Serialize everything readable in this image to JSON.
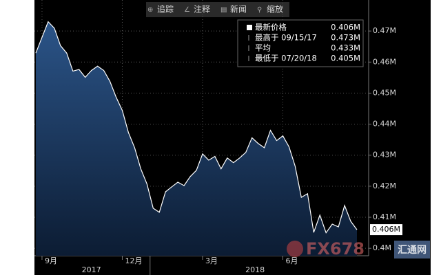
{
  "chart_data": {
    "type": "area",
    "toolbar": [
      "追踪",
      "注释",
      "新闻",
      "缩放"
    ],
    "legend": [
      {
        "label": "最新价格",
        "value": "0.406M"
      },
      {
        "label": "最高于 09/15/17",
        "value": "0.473M"
      },
      {
        "label": "平均",
        "value": "0.433M"
      },
      {
        "label": "最低于 07/20/18",
        "value": "0.405M"
      }
    ],
    "categories": [
      null,
      "9月",
      null,
      null,
      null,
      null,
      null,
      null,
      null,
      null,
      null,
      null,
      null,
      null,
      "12月",
      null,
      null,
      null,
      null,
      null,
      null,
      null,
      null,
      null,
      null,
      null,
      null,
      "3月",
      null,
      null,
      null,
      null,
      null,
      null,
      null,
      null,
      null,
      null,
      null,
      null,
      "6月",
      null,
      null,
      null,
      null,
      null,
      null,
      null,
      null,
      null,
      null,
      null,
      null
    ],
    "groups": [
      {
        "label": "2017",
        "start": 0,
        "end": 18
      },
      {
        "label": "2018",
        "start": 19,
        "end": 52
      }
    ],
    "values": [
      0.4629,
      0.468,
      0.473,
      0.4709,
      0.4653,
      0.4629,
      0.4571,
      0.4576,
      0.4551,
      0.4573,
      0.4587,
      0.4573,
      0.4538,
      0.4487,
      0.4444,
      0.4373,
      0.4324,
      0.4256,
      0.4207,
      0.4129,
      0.4116,
      0.4182,
      0.4198,
      0.4213,
      0.4202,
      0.4231,
      0.4251,
      0.4304,
      0.4284,
      0.4296,
      0.4256,
      0.4291,
      0.4276,
      0.4291,
      0.4309,
      0.4356,
      0.4338,
      0.4324,
      0.438,
      0.4347,
      0.4362,
      0.4327,
      0.4264,
      0.4164,
      0.4176,
      0.4051,
      0.4107,
      0.405,
      0.4078,
      0.4069,
      0.4138,
      0.4087,
      0.406
    ],
    "last_label": "0.406M",
    "color": "#1c3d6b",
    "line_color": "#ffffff",
    "ylim": [
      0.3976,
      0.48
    ],
    "yticks": [
      {
        "value": 0.4,
        "label": "0.4M"
      },
      {
        "value": 0.41,
        "label": "0.41M"
      },
      {
        "value": 0.42,
        "label": "0.42M"
      },
      {
        "value": 0.43,
        "label": "0.43M"
      },
      {
        "value": 0.44,
        "label": "0.44M"
      },
      {
        "value": 0.45,
        "label": "0.45M"
      },
      {
        "value": 0.46,
        "label": "0.46M"
      },
      {
        "value": 0.47,
        "label": "0.47M"
      }
    ],
    "grid": true,
    "watermark": [
      "FX678",
      "汇通网"
    ]
  }
}
